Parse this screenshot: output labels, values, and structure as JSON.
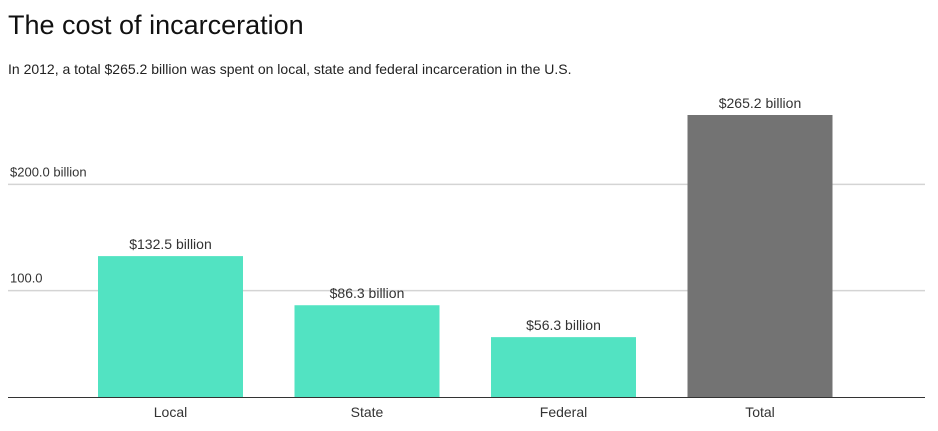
{
  "chart_data": {
    "type": "bar",
    "title": "The cost of incarceration",
    "subtitle": "In 2012, a total $265.2 billion was spent on local, state and federal incarceration in the U.S.",
    "categories": [
      "Local",
      "State",
      "Federal",
      "Total"
    ],
    "values": [
      132.5,
      86.3,
      56.3,
      265.2
    ],
    "data_labels": [
      "$132.5 billion",
      "$86.3 billion",
      "$56.3 billion",
      "$265.2 billion"
    ],
    "bar_colors": [
      "#52e3c2",
      "#52e3c2",
      "#52e3c2",
      "#737373"
    ],
    "y_ticks": [
      {
        "value": 100,
        "label": "100.0"
      },
      {
        "value": 200,
        "label": "$200.0 billion"
      }
    ],
    "ylim": [
      0,
      265.2
    ],
    "xlabel": "",
    "ylabel": "",
    "grid": true
  },
  "colors": {
    "gridline": "#d4d4d4",
    "axis": "#333333",
    "label_text": "#333333"
  }
}
